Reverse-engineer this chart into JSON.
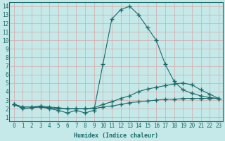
{
  "xlabel": "Humidex (Indice chaleur)",
  "bg_color": "#c5e8e8",
  "line_color": "#1a6b6b",
  "grid_color": "#d8a8a8",
  "xlim": [
    -0.5,
    23.5
  ],
  "ylim": [
    0.5,
    14.5
  ],
  "xticks": [
    0,
    1,
    2,
    3,
    4,
    5,
    6,
    7,
    8,
    9,
    10,
    11,
    12,
    13,
    14,
    15,
    16,
    17,
    18,
    19,
    20,
    21,
    22,
    23
  ],
  "yticks": [
    1,
    2,
    3,
    4,
    5,
    6,
    7,
    8,
    9,
    10,
    11,
    12,
    13,
    14
  ],
  "line1_x": [
    0,
    1,
    2,
    3,
    4,
    5,
    6,
    7,
    8,
    9,
    10,
    11,
    12,
    13,
    14,
    15,
    16,
    17,
    18,
    19,
    20,
    21,
    22,
    23
  ],
  "line1_y": [
    2.5,
    2.0,
    2.1,
    2.2,
    2.0,
    1.8,
    1.5,
    1.8,
    1.5,
    1.8,
    7.2,
    12.5,
    13.6,
    14.0,
    13.0,
    11.5,
    10.0,
    7.2,
    5.2,
    4.2,
    3.8,
    3.5,
    3.3,
    3.2
  ],
  "line2_x": [
    0,
    1,
    2,
    3,
    4,
    5,
    6,
    7,
    8,
    9,
    10,
    11,
    12,
    13,
    14,
    15,
    16,
    17,
    18,
    19,
    20,
    21,
    22,
    23
  ],
  "line2_y": [
    2.5,
    2.2,
    2.2,
    2.3,
    2.2,
    2.1,
    2.0,
    2.0,
    2.0,
    2.1,
    2.5,
    2.8,
    3.2,
    3.5,
    4.0,
    4.3,
    4.5,
    4.7,
    4.9,
    5.0,
    4.8,
    4.2,
    3.7,
    3.2
  ],
  "line3_x": [
    0,
    1,
    2,
    3,
    4,
    5,
    6,
    7,
    8,
    9,
    10,
    11,
    12,
    13,
    14,
    15,
    16,
    17,
    18,
    19,
    20,
    21,
    22,
    23
  ],
  "line3_y": [
    2.5,
    2.2,
    2.2,
    2.2,
    2.1,
    2.0,
    2.0,
    2.0,
    2.0,
    2.0,
    2.2,
    2.3,
    2.5,
    2.7,
    2.8,
    2.9,
    3.0,
    3.1,
    3.1,
    3.2,
    3.2,
    3.2,
    3.2,
    3.2
  ]
}
